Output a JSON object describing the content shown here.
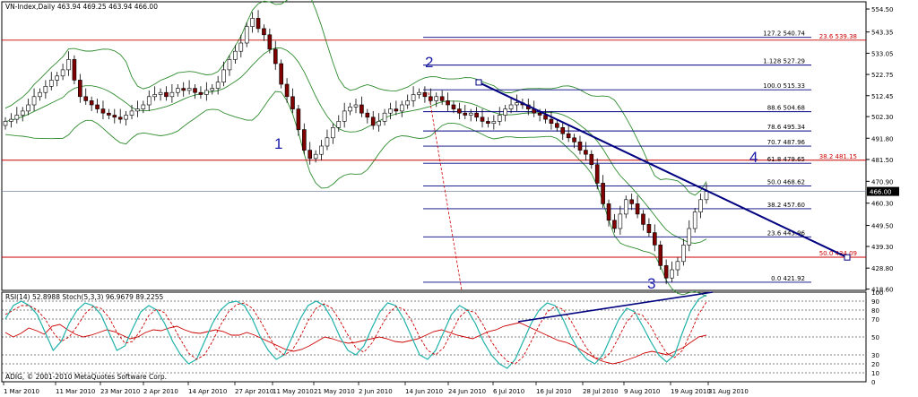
{
  "window": {
    "price_header": "VN-Index,Daily  463.94 469.25 463.94 466.00",
    "indicator_header": "RSI(14) 52.8988   Stoch(5,3,3) 96.9679 89.2255",
    "copyright": "ADIG, © 2001-2010 MetaQuotes Software Corp."
  },
  "colors": {
    "bull_candle": "#ffffff",
    "bear_candle": "#800000",
    "band": "#2e8b2e",
    "fib_line": "#000080",
    "hline_red": "#cc0000",
    "trendline": "#000080",
    "rsi": "#cc0000",
    "stoch_main": "#20b2aa",
    "stoch_signal": "#cc0000",
    "wave_label": "#1a1aa8"
  },
  "wave_labels": [
    "1",
    "2",
    "3",
    "4",
    "5"
  ],
  "chart_data": [
    {
      "type": "candlestick",
      "symbol": "VN-Index",
      "timeframe": "Daily",
      "last_bar": {
        "open": 463.94,
        "high": 469.25,
        "low": 463.94,
        "close": 466.0
      },
      "current_price": 466.0,
      "ylim": [
        418.0,
        556.0
      ],
      "y_ticks": [
        "554.50",
        "543.35",
        "533.05",
        "522.75",
        "512.45",
        "502.30",
        "491.80",
        "481.50",
        "470.90",
        "460.30",
        "449.50",
        "439.30",
        "428.80",
        "418.60"
      ],
      "x_ticks": [
        "1 Mar 2010",
        "11 Mar 2010",
        "23 Mar 2010",
        "2 Apr 2010",
        "14 Apr 2010",
        "27 Apr 2010",
        "11 May 2010",
        "21 May 2010",
        "2 Jun 2010",
        "14 Jun 2010",
        "24 Jun 2010",
        "6 Jul 2010",
        "16 Jul 2010",
        "28 Jul 2010",
        "9 Aug 2010",
        "19 Aug 2010",
        "31 Aug 2010"
      ],
      "fibonacci_levels": [
        {
          "ratio": "127.2",
          "price": "540.74"
        },
        {
          "ratio": "1.128",
          "price": "527.29"
        },
        {
          "ratio": "100.0",
          "price": "515.33"
        },
        {
          "ratio": "88.6",
          "price": "504.68"
        },
        {
          "ratio": "78.6",
          "price": "495.34"
        },
        {
          "ratio": "70.7",
          "price": "487.96"
        },
        {
          "ratio": "61.8",
          "price": "479.65"
        },
        {
          "ratio": "50.0",
          "price": "468.62"
        },
        {
          "ratio": "38.2",
          "price": "457.60"
        },
        {
          "ratio": "23.6",
          "price": "443.96"
        },
        {
          "ratio": "0.0",
          "price": "421.92"
        }
      ],
      "horizontal_lines": [
        {
          "label": "23.6",
          "price": "539.38"
        },
        {
          "label": "38.2",
          "price": "481.15"
        },
        {
          "label": "50.0",
          "price": "434.09"
        }
      ],
      "trendline": [
        {
          "x": "6 Jul 2010",
          "y": 518.9
        },
        {
          "x": "14 Sep 2010",
          "y": 434.0
        }
      ],
      "closes": [
        500,
        501,
        503,
        505,
        508,
        512,
        514,
        517,
        520,
        522,
        525,
        530,
        520,
        512,
        510,
        508,
        506,
        504,
        503,
        502,
        501,
        503,
        505,
        506,
        508,
        512,
        513,
        514,
        512,
        514,
        516,
        515,
        516,
        514,
        513,
        515,
        516,
        519,
        525,
        530,
        534,
        538,
        546,
        550,
        545,
        542,
        535,
        528,
        518,
        512,
        506,
        496,
        486,
        482,
        484,
        488,
        492,
        497,
        500,
        505,
        507,
        508,
        504,
        502,
        498,
        500,
        504,
        506,
        505,
        508,
        510,
        513,
        514,
        512,
        510,
        512,
        510,
        508,
        506,
        504,
        503,
        504,
        502,
        500,
        499,
        500,
        503,
        506,
        508,
        509,
        508,
        506,
        504,
        503,
        501,
        499,
        497,
        494,
        492,
        490,
        486,
        484,
        479,
        470,
        460,
        452,
        448,
        455,
        462,
        460,
        455,
        450,
        446,
        440,
        430,
        424,
        428,
        432,
        440,
        448,
        456,
        462,
        466
      ]
    },
    {
      "type": "line",
      "panel": "RSI(14) + Stoch(5,3,3)",
      "ylim": [
        0,
        100
      ],
      "y_ticks": [
        "100",
        "90",
        "80",
        "70",
        "50",
        "30",
        "20",
        "10",
        "0"
      ],
      "series": [
        {
          "name": "RSI(14)",
          "last": "52.8988",
          "values": [
            55,
            50,
            54,
            60,
            57,
            53,
            62,
            64,
            58,
            53,
            50,
            52,
            55,
            58,
            56,
            52,
            48,
            50,
            55,
            58,
            57,
            60,
            62,
            58,
            55,
            54,
            56,
            58,
            56,
            52,
            52,
            55,
            52,
            48,
            44,
            40,
            36,
            34,
            36,
            40,
            45,
            50,
            48,
            45,
            43,
            44,
            46,
            48,
            50,
            48,
            45,
            44,
            46,
            48,
            52,
            56,
            58,
            55,
            52,
            50,
            48,
            52,
            56,
            58,
            62,
            64,
            66,
            62,
            58,
            54,
            50,
            46,
            44,
            40,
            35,
            30,
            25,
            22,
            20,
            22,
            25,
            28,
            32,
            34,
            32,
            30,
            34,
            38,
            44,
            50,
            52
          ]
        },
        {
          "name": "Stoch(5,3,3)",
          "last": "96.9679",
          "values": [
            70,
            85,
            90,
            85,
            75,
            55,
            35,
            45,
            65,
            80,
            88,
            85,
            75,
            55,
            35,
            40,
            60,
            78,
            85,
            80,
            65,
            45,
            30,
            20,
            25,
            45,
            65,
            80,
            88,
            90,
            85,
            70,
            50,
            35,
            25,
            30,
            50,
            70,
            85,
            90,
            85,
            70,
            50,
            35,
            30,
            40,
            60,
            78,
            88,
            85,
            70,
            50,
            30,
            25,
            35,
            55,
            75,
            85,
            80,
            65,
            45,
            30,
            20,
            15,
            25,
            45,
            65,
            80,
            88,
            85,
            70,
            50,
            35,
            25,
            20,
            30,
            50,
            70,
            82,
            78,
            62,
            45,
            30,
            22,
            30,
            55,
            78,
            92,
            97
          ]
        },
        {
          "name": "Signal",
          "last": "89.2255",
          "values": [
            75,
            80,
            85,
            85,
            80,
            70,
            55,
            45,
            50,
            62,
            76,
            84,
            82,
            72,
            55,
            43,
            45,
            58,
            74,
            81,
            77,
            63,
            47,
            32,
            25,
            30,
            45,
            63,
            78,
            86,
            88,
            82,
            68,
            52,
            37,
            30,
            35,
            50,
            68,
            82,
            87,
            82,
            68,
            52,
            38,
            33,
            43,
            59,
            75,
            84,
            81,
            68,
            50,
            35,
            30,
            38,
            55,
            72,
            80,
            77,
            63,
            45,
            32,
            23,
            20,
            28,
            45,
            63,
            78,
            84,
            81,
            68,
            52,
            37,
            27,
            25,
            33,
            50,
            67,
            77,
            74,
            62,
            46,
            32,
            27,
            35,
            54,
            75,
            89
          ]
        }
      ],
      "trendline": [
        {
          "x": "16 Jul 2010",
          "y": 67
        },
        {
          "x": "31 Aug 2010",
          "y": 100
        }
      ]
    }
  ]
}
